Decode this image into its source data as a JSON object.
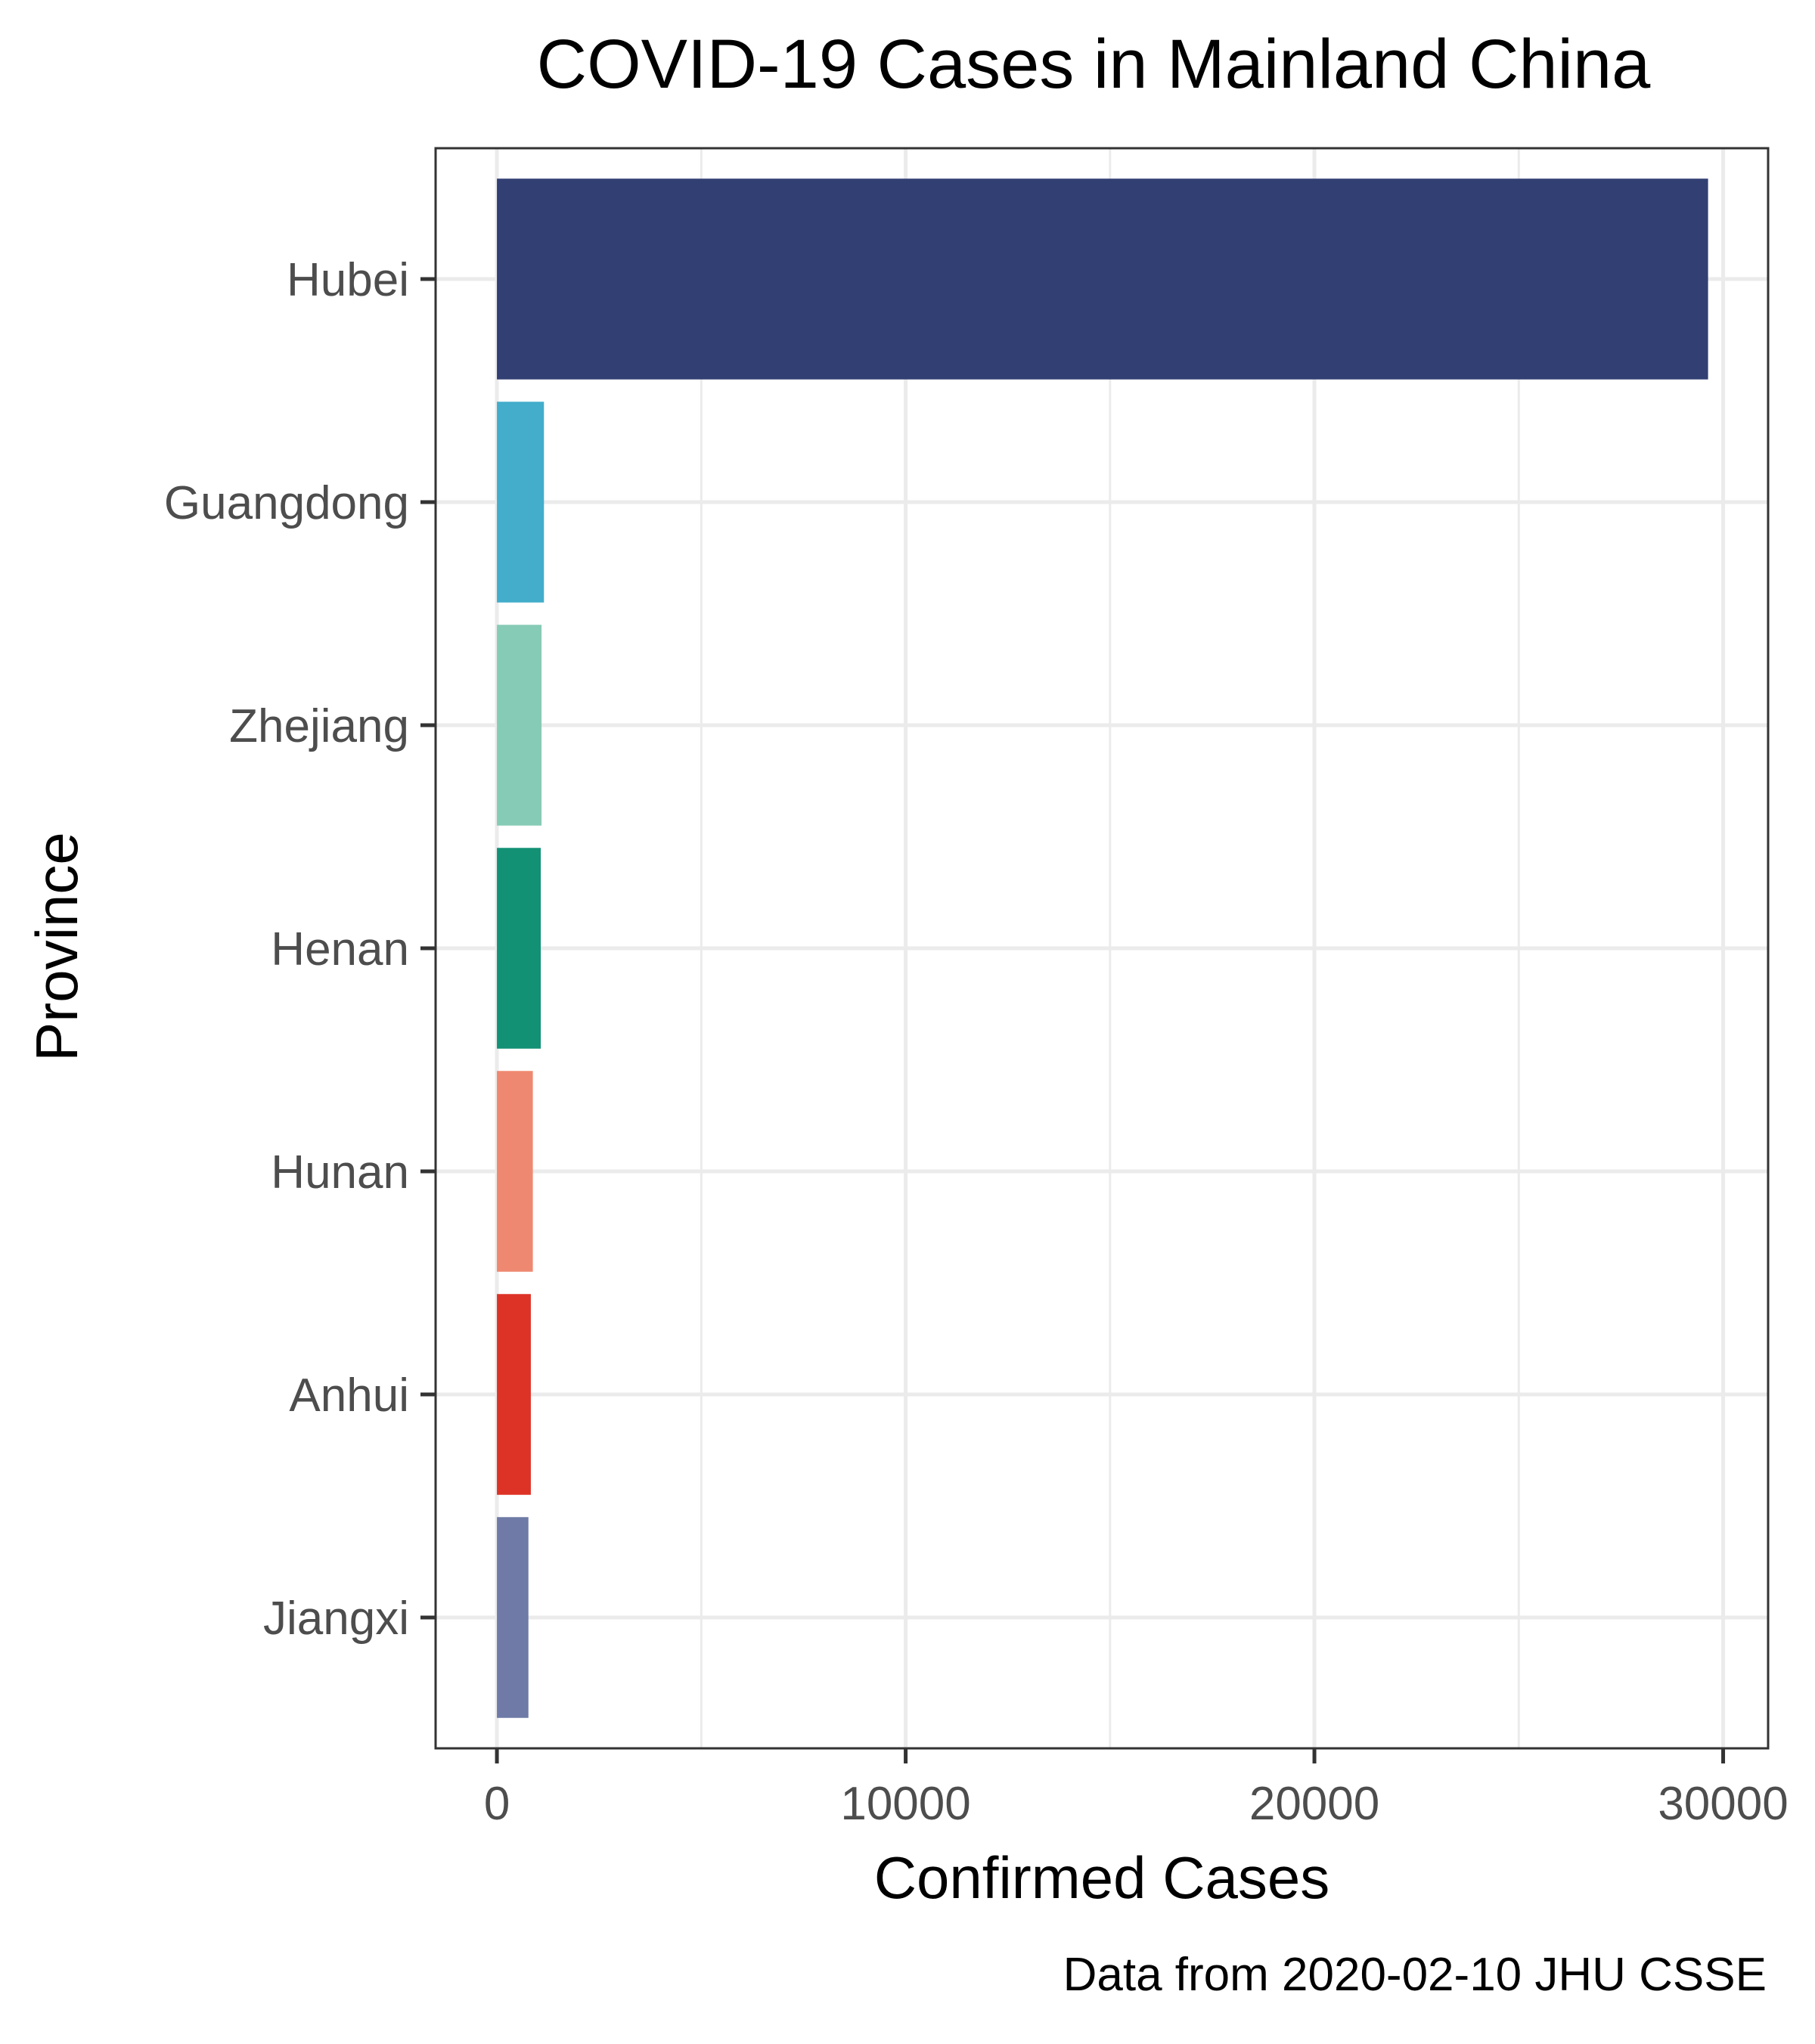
{
  "chart_data": {
    "type": "bar",
    "orientation": "horizontal",
    "title": "COVID-19 Cases in Mainland China",
    "xlabel": "Confirmed Cases",
    "ylabel": "Province",
    "caption": "Data from 2020-02-10 JHU CSSE",
    "categories": [
      "Hubei",
      "Guangdong",
      "Zhejiang",
      "Henan",
      "Hunan",
      "Anhui",
      "Jiangxi"
    ],
    "values": [
      29631,
      1151,
      1092,
      1073,
      879,
      830,
      771
    ],
    "colors": [
      "#313f73",
      "#43adcb",
      "#86cbb5",
      "#129175",
      "#ef8870",
      "#dd3327",
      "#6f7ba6"
    ],
    "xticks": [
      0,
      10000,
      20000,
      30000
    ],
    "xtick_labels": [
      "0",
      "10000",
      "20000",
      "30000"
    ],
    "xlim": [
      -1500,
      31100
    ],
    "grid": true,
    "legend": "none"
  }
}
